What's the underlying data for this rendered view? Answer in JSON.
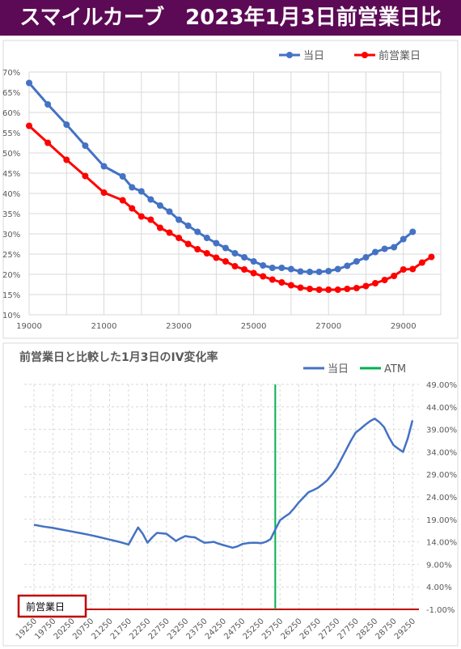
{
  "header": {
    "title": "スマイルカーブ　2023年1月3日前営業日比"
  },
  "colors": {
    "header_bg": "#5c0a55",
    "current": "#4472c4",
    "previous": "#ff0000",
    "atm": "#00b050",
    "zero_line": "#c00000",
    "box_border": "#c00000"
  },
  "chart_data": [
    {
      "type": "line",
      "title": "",
      "xlabel": "",
      "ylabel": "",
      "xlim": [
        19000,
        30000
      ],
      "ylim": [
        10,
        70
      ],
      "x_ticks": [
        "19000",
        "21000",
        "23000",
        "25000",
        "27000",
        "29000"
      ],
      "y_ticks": [
        "10%",
        "15%",
        "20%",
        "25%",
        "30%",
        "35%",
        "40%",
        "45%",
        "50%",
        "55%",
        "60%",
        "65%",
        "70%"
      ],
      "legend_position": "top-right",
      "grid": true,
      "series": [
        {
          "name": "当日",
          "color": "#4472c4",
          "x": [
            19000,
            19500,
            20000,
            20500,
            21000,
            21500,
            21750,
            22000,
            22250,
            22500,
            22750,
            23000,
            23250,
            23500,
            23750,
            24000,
            24250,
            24500,
            24750,
            25000,
            25250,
            25500,
            25750,
            26000,
            26250,
            26500,
            26750,
            27000,
            27250,
            27500,
            27750,
            28000,
            28250,
            28500,
            28750,
            29000,
            29250
          ],
          "values": [
            67.3,
            62.0,
            57.0,
            51.8,
            46.7,
            44.2,
            41.5,
            40.5,
            38.5,
            37.0,
            35.5,
            33.5,
            32.0,
            30.5,
            29.0,
            27.7,
            26.5,
            25.2,
            24.2,
            23.2,
            22.2,
            21.6,
            21.6,
            21.3,
            20.7,
            20.6,
            20.6,
            20.8,
            21.3,
            22.1,
            23.2,
            24.2,
            25.5,
            26.3,
            26.7,
            28.7,
            30.5
          ]
        },
        {
          "name": "前営業日",
          "color": "#ff0000",
          "x": [
            19000,
            19500,
            20000,
            20500,
            21000,
            21500,
            21750,
            22000,
            22250,
            22500,
            22750,
            23000,
            23250,
            23500,
            23750,
            24000,
            24250,
            24500,
            24750,
            25000,
            25250,
            25500,
            25750,
            26000,
            26250,
            26500,
            26750,
            27000,
            27250,
            27500,
            27750,
            28000,
            28250,
            28500,
            28750,
            29000,
            29250,
            29500,
            29750
          ],
          "values": [
            56.7,
            52.5,
            48.3,
            44.3,
            40.2,
            38.3,
            36.3,
            34.3,
            33.5,
            31.5,
            30.3,
            29.0,
            27.5,
            26.2,
            25.2,
            24.1,
            23.2,
            22.0,
            21.2,
            20.3,
            19.5,
            18.7,
            18.0,
            17.3,
            16.7,
            16.4,
            16.2,
            16.2,
            16.2,
            16.4,
            16.6,
            17.1,
            17.8,
            18.6,
            19.6,
            21.2,
            21.3,
            22.9,
            24.3
          ]
        }
      ]
    },
    {
      "type": "line",
      "title": "前営業日と比較した1月3日のIV変化率",
      "xlabel": "",
      "ylabel": "",
      "ylim": [
        -1,
        49
      ],
      "y_ticks": [
        "49.00%",
        "44.00%",
        "39.00%",
        "34.00%",
        "29.00%",
        "24.00%",
        "19.00%",
        "14.00%",
        "9.00%",
        "4.00%",
        "-1.00%"
      ],
      "x_ticks": [
        "19250",
        "19750",
        "20250",
        "20750",
        "21250",
        "21750",
        "22250",
        "22750",
        "23250",
        "23750",
        "24250",
        "24750",
        "25250",
        "25750",
        "26250",
        "26750",
        "27250",
        "27750",
        "28250",
        "28750",
        "29250"
      ],
      "legend_position": "top-right",
      "grid": true,
      "atm": 25625,
      "zero_label": "前営業日",
      "series": [
        {
          "name": "当日",
          "color": "#4472c4",
          "x": [
            19250,
            19500,
            19750,
            20000,
            20250,
            20500,
            20750,
            21000,
            21250,
            21500,
            21750,
            22000,
            22125,
            22250,
            22375,
            22500,
            22750,
            22875,
            23000,
            23125,
            23250,
            23375,
            23500,
            23625,
            23750,
            23875,
            24000,
            24125,
            24250,
            24375,
            24500,
            24625,
            24750,
            24875,
            25000,
            25125,
            25250,
            25375,
            25500,
            25625,
            25750,
            25875,
            26000,
            26125,
            26250,
            26375,
            26500,
            26625,
            26750,
            26875,
            27000,
            27125,
            27250,
            27375,
            27500,
            27625,
            27750,
            27875,
            28000,
            28125,
            28250,
            28375,
            28500,
            28625,
            28750,
            28875,
            29000,
            29125,
            29250
          ],
          "values": [
            17.8,
            17.4,
            17.1,
            16.7,
            16.3,
            15.9,
            15.5,
            15.0,
            14.5,
            14.0,
            13.4,
            17.2,
            15.8,
            13.8,
            15.0,
            16.0,
            15.8,
            15.0,
            14.2,
            14.8,
            15.3,
            15.1,
            15.0,
            14.4,
            13.8,
            13.9,
            14.0,
            13.6,
            13.3,
            13.0,
            12.7,
            13.0,
            13.5,
            13.7,
            13.8,
            13.8,
            13.7,
            14.0,
            14.6,
            16.7,
            18.8,
            19.6,
            20.3,
            21.5,
            22.8,
            23.9,
            25.0,
            25.5,
            26.0,
            26.8,
            27.7,
            29.0,
            30.5,
            32.5,
            34.5,
            36.5,
            38.3,
            39.1,
            40.0,
            40.8,
            41.4,
            40.6,
            39.5,
            37.3,
            35.5,
            34.7,
            34.0,
            37.0,
            41.0
          ]
        }
      ]
    }
  ]
}
